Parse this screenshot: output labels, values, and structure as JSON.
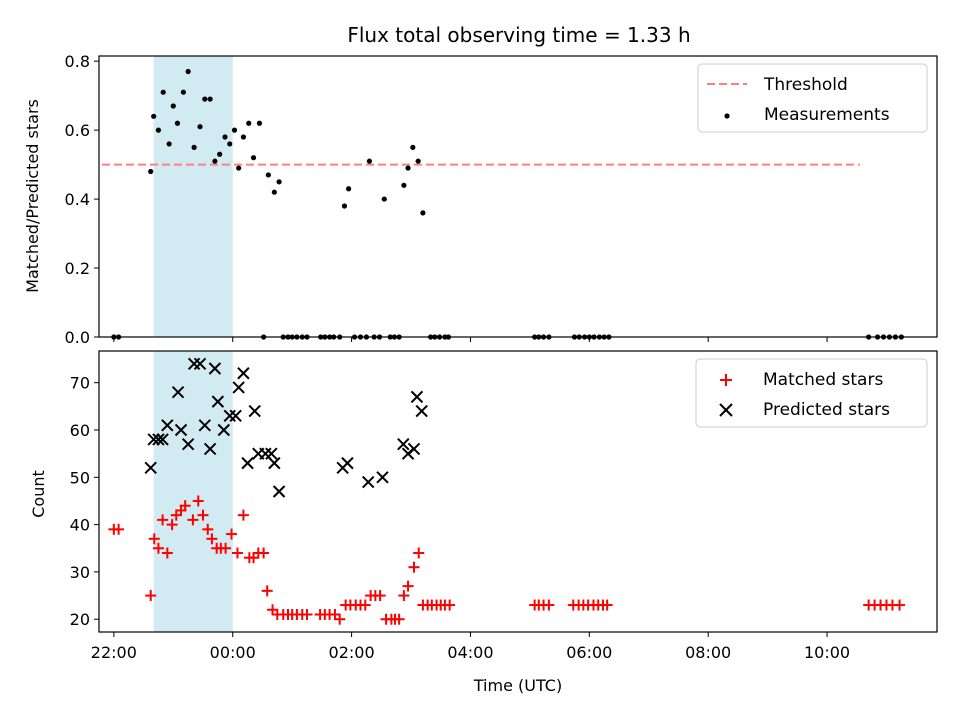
{
  "chart_data": {
    "title": "Flux total observing time = 1.33 h",
    "x_domain_hours": [
      -2.25,
      11.85
    ],
    "shaded_span_hours": [
      -1.33,
      0.0
    ],
    "shade_color": "#add8e6",
    "xlabel": "Time (UTC)",
    "xticks": [
      {
        "hours": -2,
        "label": "22:00"
      },
      {
        "hours": 0,
        "label": "00:00"
      },
      {
        "hours": 2,
        "label": "02:00"
      },
      {
        "hours": 4,
        "label": "04:00"
      },
      {
        "hours": 6,
        "label": "06:00"
      },
      {
        "hours": 8,
        "label": "08:00"
      },
      {
        "hours": 10,
        "label": "10:00"
      }
    ],
    "top": {
      "type": "scatter",
      "ylabel": "Matched/Predicted stars",
      "ylim": [
        0,
        0.815
      ],
      "yticks": [
        0.0,
        0.2,
        0.4,
        0.6,
        0.8
      ],
      "ytick_labels": [
        "0.0",
        "0.2",
        "0.4",
        "0.6",
        "0.8"
      ],
      "threshold": {
        "name": "Threshold",
        "value": 0.5,
        "x_range": [
          -2.2,
          10.55
        ],
        "color": "#ff7f7f"
      },
      "measurements_name": "Measurements",
      "measurements_color": "#000000",
      "measurements": [
        [
          -1.38,
          0.48
        ],
        [
          -1.33,
          0.64
        ],
        [
          -1.25,
          0.6
        ],
        [
          -1.17,
          0.71
        ],
        [
          -1.07,
          0.56
        ],
        [
          -1.0,
          0.67
        ],
        [
          -0.93,
          0.62
        ],
        [
          -0.83,
          0.71
        ],
        [
          -0.75,
          0.77
        ],
        [
          -0.65,
          0.55
        ],
        [
          -0.55,
          0.61
        ],
        [
          -0.47,
          0.69
        ],
        [
          -0.38,
          0.69
        ],
        [
          -0.3,
          0.51
        ],
        [
          -0.22,
          0.53
        ],
        [
          -0.13,
          0.58
        ],
        [
          -0.05,
          0.56
        ],
        [
          0.03,
          0.6
        ],
        [
          0.1,
          0.49
        ],
        [
          0.18,
          0.58
        ],
        [
          0.27,
          0.62
        ],
        [
          0.35,
          0.52
        ],
        [
          0.45,
          0.62
        ],
        [
          0.6,
          0.47
        ],
        [
          0.7,
          0.42
        ],
        [
          0.78,
          0.45
        ],
        [
          1.88,
          0.38
        ],
        [
          1.95,
          0.43
        ],
        [
          2.3,
          0.51
        ],
        [
          2.55,
          0.4
        ],
        [
          2.88,
          0.44
        ],
        [
          2.95,
          0.49
        ],
        [
          3.03,
          0.55
        ],
        [
          3.12,
          0.51
        ],
        [
          3.2,
          0.36
        ],
        [
          -2.0,
          0
        ],
        [
          -1.92,
          0
        ],
        [
          0.52,
          0
        ],
        [
          0.85,
          0
        ],
        [
          0.93,
          0
        ],
        [
          1.0,
          0
        ],
        [
          1.08,
          0
        ],
        [
          1.17,
          0
        ],
        [
          1.25,
          0
        ],
        [
          1.48,
          0
        ],
        [
          1.55,
          0
        ],
        [
          1.63,
          0
        ],
        [
          1.7,
          0
        ],
        [
          1.8,
          0
        ],
        [
          2.05,
          0
        ],
        [
          2.15,
          0
        ],
        [
          2.25,
          0
        ],
        [
          2.38,
          0
        ],
        [
          2.47,
          0
        ],
        [
          2.65,
          0
        ],
        [
          2.72,
          0
        ],
        [
          2.8,
          0
        ],
        [
          3.33,
          0
        ],
        [
          3.4,
          0
        ],
        [
          3.48,
          0
        ],
        [
          3.57,
          0
        ],
        [
          3.63,
          0
        ],
        [
          5.08,
          0
        ],
        [
          5.15,
          0
        ],
        [
          5.23,
          0
        ],
        [
          5.32,
          0
        ],
        [
          5.75,
          0
        ],
        [
          5.83,
          0
        ],
        [
          5.92,
          0
        ],
        [
          6.0,
          0
        ],
        [
          6.08,
          0
        ],
        [
          6.17,
          0
        ],
        [
          6.25,
          0
        ],
        [
          6.33,
          0
        ],
        [
          10.7,
          0
        ],
        [
          10.85,
          0
        ],
        [
          10.95,
          0
        ],
        [
          11.05,
          0
        ],
        [
          11.15,
          0
        ],
        [
          11.25,
          0
        ]
      ]
    },
    "bottom": {
      "type": "scatter",
      "ylabel": "Count",
      "ylim": [
        17.3,
        76.7
      ],
      "yticks": [
        20,
        30,
        40,
        50,
        60,
        70
      ],
      "ytick_labels": [
        "20",
        "30",
        "40",
        "50",
        "60",
        "70"
      ],
      "matched": {
        "name": "Matched stars",
        "color": "#ff0000",
        "points": [
          [
            -2.0,
            39
          ],
          [
            -1.92,
            39
          ],
          [
            -1.38,
            25
          ],
          [
            -1.32,
            37
          ],
          [
            -1.25,
            35
          ],
          [
            -1.18,
            41
          ],
          [
            -1.1,
            34
          ],
          [
            -1.02,
            40
          ],
          [
            -0.95,
            42
          ],
          [
            -0.87,
            43
          ],
          [
            -0.8,
            44
          ],
          [
            -0.67,
            41
          ],
          [
            -0.58,
            45
          ],
          [
            -0.5,
            42
          ],
          [
            -0.42,
            39
          ],
          [
            -0.35,
            37
          ],
          [
            -0.27,
            35
          ],
          [
            -0.2,
            35
          ],
          [
            -0.12,
            35
          ],
          [
            -0.02,
            38
          ],
          [
            0.08,
            34
          ],
          [
            0.18,
            42
          ],
          [
            0.28,
            33
          ],
          [
            0.35,
            33
          ],
          [
            0.43,
            34
          ],
          [
            0.52,
            34
          ],
          [
            0.58,
            26
          ],
          [
            0.67,
            22
          ],
          [
            0.75,
            21
          ],
          [
            0.85,
            21
          ],
          [
            0.93,
            21
          ],
          [
            1.0,
            21
          ],
          [
            1.08,
            21
          ],
          [
            1.17,
            21
          ],
          [
            1.25,
            21
          ],
          [
            1.47,
            21
          ],
          [
            1.55,
            21
          ],
          [
            1.63,
            21
          ],
          [
            1.72,
            21
          ],
          [
            1.8,
            20
          ],
          [
            1.9,
            23
          ],
          [
            1.98,
            23
          ],
          [
            2.07,
            23
          ],
          [
            2.15,
            23
          ],
          [
            2.23,
            23
          ],
          [
            2.32,
            25
          ],
          [
            2.4,
            25
          ],
          [
            2.48,
            25
          ],
          [
            2.58,
            20
          ],
          [
            2.67,
            20
          ],
          [
            2.73,
            20
          ],
          [
            2.8,
            20
          ],
          [
            2.88,
            25
          ],
          [
            2.95,
            27
          ],
          [
            3.05,
            31
          ],
          [
            3.13,
            34
          ],
          [
            3.2,
            23
          ],
          [
            3.28,
            23
          ],
          [
            3.35,
            23
          ],
          [
            3.43,
            23
          ],
          [
            3.5,
            23
          ],
          [
            3.57,
            23
          ],
          [
            3.65,
            23
          ],
          [
            5.08,
            23
          ],
          [
            5.15,
            23
          ],
          [
            5.23,
            23
          ],
          [
            5.32,
            23
          ],
          [
            5.73,
            23
          ],
          [
            5.82,
            23
          ],
          [
            5.9,
            23
          ],
          [
            5.98,
            23
          ],
          [
            6.07,
            23
          ],
          [
            6.15,
            23
          ],
          [
            6.23,
            23
          ],
          [
            6.3,
            23
          ],
          [
            10.7,
            23
          ],
          [
            10.8,
            23
          ],
          [
            10.9,
            23
          ],
          [
            11.0,
            23
          ],
          [
            11.1,
            23
          ],
          [
            11.22,
            23
          ]
        ]
      },
      "predicted": {
        "name": "Predicted stars",
        "color": "#000000",
        "points": [
          [
            -1.38,
            52
          ],
          [
            -1.33,
            58
          ],
          [
            -1.25,
            58
          ],
          [
            -1.18,
            58
          ],
          [
            -1.1,
            61
          ],
          [
            -0.92,
            68
          ],
          [
            -0.87,
            60
          ],
          [
            -0.75,
            57
          ],
          [
            -0.65,
            74
          ],
          [
            -0.55,
            74
          ],
          [
            -0.47,
            61
          ],
          [
            -0.38,
            56
          ],
          [
            -0.3,
            73
          ],
          [
            -0.25,
            66
          ],
          [
            -0.15,
            60
          ],
          [
            -0.05,
            63
          ],
          [
            0.05,
            63
          ],
          [
            0.1,
            69
          ],
          [
            0.18,
            72
          ],
          [
            0.25,
            53
          ],
          [
            0.37,
            64
          ],
          [
            0.43,
            55
          ],
          [
            0.55,
            55
          ],
          [
            0.65,
            55
          ],
          [
            0.7,
            53
          ],
          [
            0.78,
            47
          ],
          [
            1.85,
            52
          ],
          [
            1.93,
            53
          ],
          [
            2.28,
            49
          ],
          [
            2.52,
            50
          ],
          [
            2.87,
            57
          ],
          [
            2.95,
            55
          ],
          [
            3.05,
            56
          ],
          [
            3.1,
            67
          ],
          [
            3.18,
            64
          ]
        ]
      }
    }
  }
}
